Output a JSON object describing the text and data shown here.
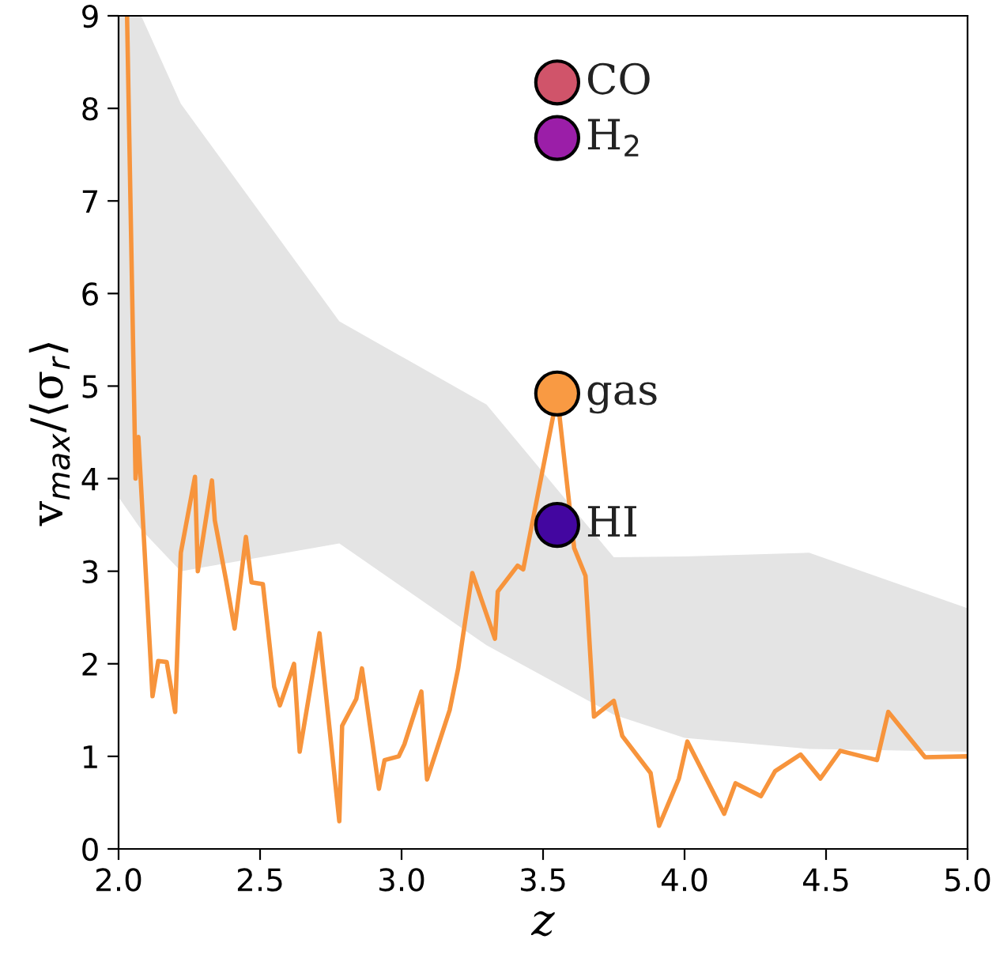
{
  "chart_data": {
    "type": "line",
    "xlabel": "z",
    "ylabel": "v$_{max}$/⟨σ$_{r}$⟩",
    "xlim": [
      2.0,
      5.0
    ],
    "xticks": [
      {
        "value": 2.0,
        "label": "2.0"
      },
      {
        "value": 2.5,
        "label": "2.5"
      },
      {
        "value": 3.0,
        "label": "3.0"
      },
      {
        "value": 3.5,
        "label": "3.5"
      },
      {
        "value": 4.0,
        "label": "4.0"
      },
      {
        "value": 4.5,
        "label": "4.5"
      },
      {
        "value": 5.0,
        "label": "5.0"
      }
    ],
    "ylim": [
      0,
      9
    ],
    "yticks": [
      0,
      1,
      2,
      3,
      4,
      5,
      6,
      7,
      8,
      9
    ],
    "grid": false,
    "legend": false,
    "series": [
      {
        "type": "area",
        "color": "#e4e4e4",
        "x": [
          2.0,
          2.08,
          2.22,
          2.78,
          3.3,
          3.75,
          4.0,
          4.44,
          5.0
        ],
        "lower": [
          3.8,
          3.45,
          3.0,
          3.3,
          2.2,
          1.45,
          1.2,
          1.08,
          1.05
        ],
        "upper": [
          9,
          9,
          8.05,
          5.7,
          4.8,
          3.15,
          3.16,
          3.2,
          2.6
        ],
        "values": [
          null,
          null,
          null,
          null,
          null,
          null,
          null,
          null,
          null
        ]
      },
      {
        "color": "#f7943c",
        "x": [
          2.03,
          2.06,
          2.07,
          2.12,
          2.14,
          2.17,
          2.2,
          2.22,
          2.27,
          2.28,
          2.33,
          2.34,
          2.38,
          2.41,
          2.45,
          2.47,
          2.51,
          2.55,
          2.57,
          2.62,
          2.64,
          2.71,
          2.78,
          2.79,
          2.84,
          2.86,
          2.92,
          2.94,
          2.99,
          3.01,
          3.07,
          3.09,
          3.17,
          3.2,
          3.25,
          3.33,
          3.34,
          3.41,
          3.43,
          3.55,
          3.61,
          3.65,
          3.68,
          3.75,
          3.78,
          3.88,
          3.91,
          3.98,
          4.01,
          4.14,
          4.18,
          4.27,
          4.32,
          4.41,
          4.48,
          4.55,
          4.68,
          4.72,
          4.85,
          5.0
        ],
        "values": [
          9.0,
          4.0,
          4.45,
          1.65,
          2.03,
          2.02,
          1.48,
          3.2,
          4.02,
          3.0,
          3.98,
          3.55,
          2.9,
          2.38,
          3.37,
          2.88,
          2.86,
          1.75,
          1.55,
          2.0,
          1.05,
          2.33,
          0.3,
          1.33,
          1.62,
          1.95,
          0.65,
          0.96,
          1.0,
          1.13,
          1.7,
          0.75,
          1.5,
          1.95,
          2.98,
          2.27,
          2.78,
          3.06,
          3.02,
          4.9,
          3.25,
          2.95,
          1.43,
          1.6,
          1.22,
          0.82,
          0.25,
          0.76,
          1.16,
          0.38,
          0.71,
          0.57,
          0.84,
          1.02,
          0.76,
          1.06,
          0.96,
          1.48,
          0.99,
          1.0
        ]
      },
      {
        "type": "scatter",
        "name": "CO",
        "color": "#d0546a",
        "x": [
          3.55
        ],
        "values": [
          8.28
        ]
      },
      {
        "type": "scatter",
        "name": "H$_{2}$",
        "color": "#9b1ea8",
        "x": [
          3.55
        ],
        "values": [
          7.68
        ]
      },
      {
        "type": "scatter",
        "name": "gas",
        "color": "#f99a43",
        "x": [
          3.55
        ],
        "values": [
          4.92
        ]
      },
      {
        "type": "scatter",
        "name": "HI",
        "color": "#4306a0",
        "x": [
          3.55
        ],
        "values": [
          3.5
        ]
      }
    ]
  }
}
